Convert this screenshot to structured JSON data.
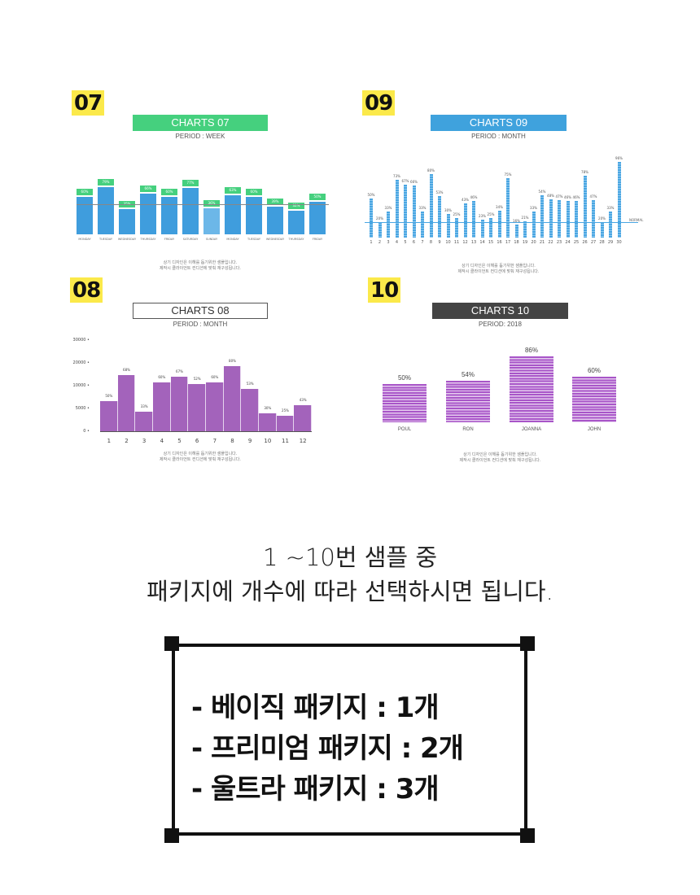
{
  "panels": {
    "c07": {
      "badge": "07",
      "title": "CHARTS 07",
      "subtitle": "PERIOD : WEEK",
      "title_color": "#45d07e",
      "bar_color": "#3f9ddd",
      "caption_line1": "상기 디자인은 이해를 돕기위한 샘플입니다.",
      "caption_line2": "제작시 클라이언트 컨디션에 맞춰 재구성됩니다."
    },
    "c08": {
      "badge": "08",
      "title": "CHARTS 08",
      "subtitle": "PERIOD : MONTH",
      "title_color": "#ffffff",
      "bar_color": "#a363bb",
      "caption_line1": "상기 디자인은 이해를 돕기위한 샘플입니다.",
      "caption_line2": "제작시 클라이언트 컨디션에 맞춰 재구성됩니다."
    },
    "c09": {
      "badge": "09",
      "title": "CHARTS 09",
      "subtitle": "PERIOD : MONTH",
      "title_color": "#3fa2dd",
      "bar_color": "#4aa6e2",
      "normal_label": "NORMAL",
      "caption_line1": "상기 디자인은 이해를 돕기위한 샘플입니다.",
      "caption_line2": "제작시 클라이언트 컨디션에 맞춰 재구성됩니다."
    },
    "c10": {
      "badge": "10",
      "title": "CHARTS 10",
      "subtitle": "PERIOD: 2018",
      "title_color": "#444444",
      "bar_color": "#a855c8",
      "caption_line1": "상기 디자인은 이해를 돕기위한 샘플입니다.",
      "caption_line2": "제작시 클라이언트 컨디션에 맞춰 재구성됩니다."
    }
  },
  "headline": {
    "line1": "1 ~10번 샘플 중",
    "line2": "패키지에 개수에 따라 선택하시면 됩니다."
  },
  "packages": [
    {
      "text": "- 베이직 패키지 : 1개"
    },
    {
      "text": "- 프리미엄 패키지 : 2개"
    },
    {
      "text": "- 울트라 패키지 : 3개"
    }
  ],
  "chart_data": [
    {
      "type": "bar",
      "title": "CHARTS 07",
      "subtitle": "PERIOD : WEEK",
      "categories": [
        "MONDAY",
        "TUESDAY",
        "WEDNESDAY",
        "THURSDAY",
        "FRIDAY",
        "SATURDAY",
        "SUNDAY",
        "MONDAY",
        "TUESDAY",
        "WEDNESDAY",
        "THURSDAY",
        "FRIDAY"
      ],
      "values": [
        60,
        79,
        35,
        66,
        60,
        77,
        36,
        63,
        60,
        39,
        32,
        50
      ],
      "value_format": "%",
      "reference_line": 48,
      "legend": "none",
      "grid": false
    },
    {
      "type": "bar",
      "title": "CHARTS 08",
      "subtitle": "PERIOD : MONTH",
      "categories": [
        "1",
        "2",
        "3",
        "4",
        "5",
        "6",
        "7",
        "8",
        "9",
        "10",
        "11",
        "12"
      ],
      "values": [
        10000,
        18500,
        6500,
        16000,
        18000,
        15500,
        16000,
        21500,
        14000,
        6000,
        5000,
        8500
      ],
      "labels": [
        "50%",
        "68%",
        "33%",
        "60%",
        "67%",
        "52%",
        "60%",
        "80%",
        "53%",
        "30%",
        "25%",
        "43%"
      ],
      "ylim": [
        0,
        30000
      ],
      "yticks": [
        0,
        5000,
        10000,
        20000,
        30000
      ],
      "grid": false
    },
    {
      "type": "bar",
      "title": "CHARTS 09",
      "subtitle": "PERIOD : MONTH",
      "categories": [
        "1",
        "2",
        "3",
        "4",
        "5",
        "6",
        "7",
        "8",
        "9",
        "10",
        "11",
        "12",
        "13",
        "14",
        "15",
        "16",
        "17",
        "18",
        "19",
        "20",
        "21",
        "22",
        "23",
        "24",
        "25",
        "26",
        "27",
        "28",
        "29",
        "30"
      ],
      "values": [
        50,
        20,
        33,
        73,
        67,
        66,
        33,
        80,
        53,
        30,
        25,
        43,
        46,
        23,
        25,
        34,
        75,
        16,
        21,
        33,
        54,
        48,
        47,
        46,
        46,
        78,
        47,
        20,
        33,
        96
      ],
      "value_format": "%",
      "reference_line_label": "NORMAL",
      "reference_line": 15,
      "grid": false
    },
    {
      "type": "bar",
      "title": "CHARTS 10",
      "subtitle": "PERIOD: 2018",
      "categories": [
        "POUL",
        "RON",
        "JOANNA",
        "JOHN"
      ],
      "values": [
        50,
        54,
        86,
        60
      ],
      "value_format": "%",
      "ylim": [
        0,
        100
      ],
      "grid": false
    }
  ]
}
